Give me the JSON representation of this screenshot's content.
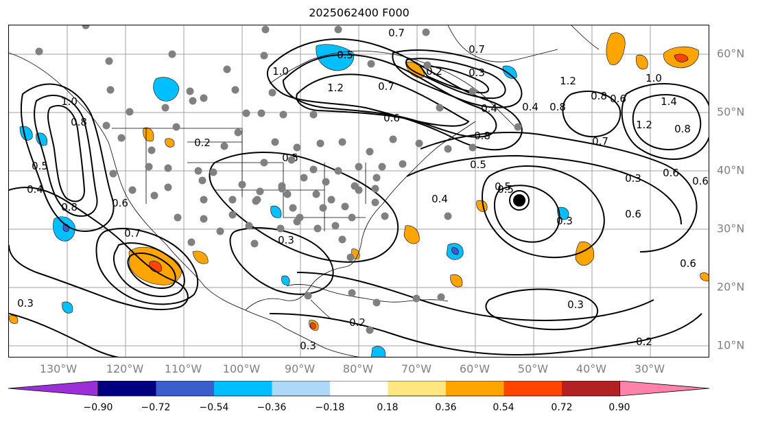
{
  "title": "2025062400 F000",
  "lon_labels": [
    "130°W",
    "120°W",
    "110°W",
    "100°W",
    "90°W",
    "80°W",
    "70°W",
    "60°W",
    "50°W",
    "40°W",
    "30°W"
  ],
  "lat_labels": [
    "60°N",
    "50°N",
    "40°N",
    "30°N",
    "20°N",
    "10°N"
  ],
  "contour_labels": [
    "0.5",
    "0.7",
    "0.7",
    "0.2",
    "0.3",
    "1.0",
    "1.2",
    "0.7",
    "0.6",
    "0.4",
    "1.2",
    "0.8",
    "0.6",
    "1.0",
    "1.4",
    "1.2",
    "0.8",
    "0.4",
    "0.5",
    "0.8",
    "0.5",
    "0.3",
    "0.6",
    "0.6",
    "0.3",
    "0.5",
    "0.2",
    "0.4",
    "0.8",
    "0.6",
    "0.3",
    "0.7",
    "0.7",
    "0.6",
    "0.8",
    "0.3",
    "0.2",
    "0.3",
    "0.3",
    "0.2",
    "0.5",
    "0.4",
    "0.6",
    "1.0",
    "0.8",
    "0.5"
  ],
  "colorbar": {
    "ticks": [
      "−0.90",
      "−0.72",
      "−0.54",
      "−0.36",
      "−0.18",
      "0.18",
      "0.36",
      "0.54",
      "0.72",
      "0.90"
    ],
    "colors": [
      "#9b30d9",
      "#000080",
      "#3a5fcd",
      "#00bfff",
      "#add8f7",
      "#ffffff",
      "#ffe680",
      "#ffa500",
      "#ff4500",
      "#b22222",
      "#ff82ab"
    ]
  }
}
